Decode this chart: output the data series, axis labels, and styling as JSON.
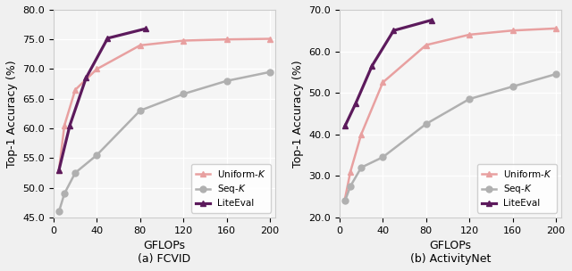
{
  "fcvid": {
    "uniform_k": {
      "x": [
        5,
        10,
        20,
        40,
        80,
        120,
        160,
        200
      ],
      "y": [
        53.0,
        60.5,
        66.5,
        70.0,
        74.0,
        74.8,
        75.0,
        75.1
      ]
    },
    "seq_k": {
      "x": [
        5,
        10,
        20,
        40,
        80,
        120,
        160,
        200
      ],
      "y": [
        46.0,
        49.0,
        52.5,
        55.5,
        63.0,
        65.8,
        68.0,
        69.5
      ]
    },
    "liteeval": {
      "x": [
        5,
        15,
        30,
        50,
        85
      ],
      "y": [
        53.0,
        60.5,
        68.5,
        75.2,
        76.8
      ]
    },
    "ylim": [
      45.0,
      80.0
    ],
    "yticks": [
      45.0,
      50.0,
      55.0,
      60.0,
      65.0,
      70.0,
      75.0,
      80.0
    ],
    "xlabel": "GFLOPs",
    "ylabel": "Top-1 Accuracy (%)",
    "title": "(a) FCVID"
  },
  "activitynet": {
    "uniform_k": {
      "x": [
        5,
        10,
        20,
        40,
        80,
        120,
        160,
        200
      ],
      "y": [
        24.5,
        31.0,
        40.0,
        52.5,
        61.5,
        64.0,
        65.0,
        65.5
      ]
    },
    "seq_k": {
      "x": [
        5,
        10,
        20,
        40,
        80,
        120,
        160,
        200
      ],
      "y": [
        24.0,
        27.5,
        32.0,
        34.5,
        42.5,
        48.5,
        51.5,
        54.5
      ]
    },
    "liteeval": {
      "x": [
        5,
        15,
        30,
        50,
        85
      ],
      "y": [
        42.0,
        47.5,
        56.5,
        65.0,
        67.5
      ]
    },
    "ylim": [
      20.0,
      70.0
    ],
    "yticks": [
      20.0,
      30.0,
      40.0,
      50.0,
      60.0,
      70.0
    ],
    "xlabel": "GFLOPs",
    "ylabel": "Top-1 Accuracy (%)",
    "title": "(b) ActivityNet"
  },
  "uniform_k_color": "#e8a0a0",
  "seq_k_color": "#b0b0b0",
  "liteeval_color": "#5c1a5c",
  "uniform_k_label": "Uniform-$\\mathit{K}$",
  "seq_k_label": "Seq-$\\mathit{K}$",
  "liteeval_label": "LiteEval",
  "xticks": [
    0,
    40,
    80,
    120,
    160,
    200
  ],
  "xlim": [
    0,
    205
  ],
  "background_color": "#f5f5f5",
  "grid_color": "#ffffff",
  "linewidth": 1.8,
  "marker_size": 5
}
